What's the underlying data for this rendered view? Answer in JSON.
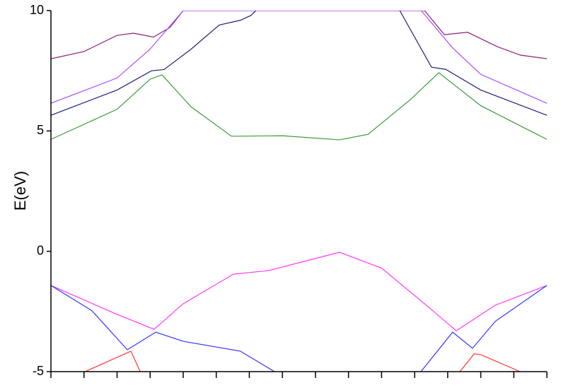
{
  "chart_data": {
    "type": "line",
    "y_label": "E(eV)",
    "xlim": [
      0,
      15
    ],
    "xticks": [
      0,
      1,
      2,
      3,
      4,
      5,
      6,
      7,
      8,
      9,
      10,
      11,
      12,
      13,
      14,
      15
    ],
    "ylim": [
      -5,
      10
    ],
    "yticks": [
      -5,
      0,
      5,
      10
    ],
    "series": [
      {
        "color": "#8b1f7a",
        "x": [
          0,
          1,
          2,
          2.5,
          3.1,
          3.6,
          4,
          11.3,
          11.9,
          12.6,
          13.5,
          14.2,
          15
        ],
        "values": [
          8.0,
          8.3,
          8.97,
          9.06,
          8.9,
          9.3,
          10,
          10,
          9.0,
          9.1,
          8.5,
          8.15,
          8.0
        ]
      },
      {
        "color": "#a64dff",
        "x": [
          0,
          2,
          3,
          4,
          11.2,
          12.15,
          13,
          15
        ],
        "values": [
          6.15,
          7.2,
          8.4,
          10,
          10,
          8.45,
          7.35,
          6.15
        ]
      },
      {
        "color": "#1f1f78",
        "x": [
          0,
          2,
          3.04,
          3.42,
          4.24,
          5.09,
          5.73,
          6.05,
          6.2,
          null,
          10.55,
          11.51,
          11.94,
          13,
          15
        ],
        "values": [
          5.65,
          6.7,
          7.5,
          7.55,
          8.4,
          9.4,
          9.6,
          9.8,
          10,
          null,
          10,
          7.65,
          7.56,
          6.7,
          5.65
        ]
      },
      {
        "color": "#3a9a3a",
        "x": [
          0,
          2,
          3,
          3.36,
          4.24,
          5.46,
          7,
          8.73,
          9.59,
          10.87,
          11.73,
          13,
          15
        ],
        "values": [
          4.65,
          5.9,
          7.15,
          7.33,
          6.0,
          4.78,
          4.8,
          4.63,
          4.86,
          6.3,
          7.42,
          6.05,
          4.65
        ]
      },
      {
        "color": "#ff33ff",
        "x": [
          0,
          2,
          3.12,
          4,
          5.52,
          6.59,
          8.73,
          10,
          11.3,
          12.26,
          13.44,
          15
        ],
        "values": [
          -1.42,
          -2.62,
          -3.24,
          -2.18,
          -0.95,
          -0.8,
          -0.04,
          -0.7,
          -2.18,
          -3.3,
          -2.24,
          -1.42
        ]
      },
      {
        "color": "#3333ff",
        "x": [
          0,
          1.24,
          2.31,
          3.17,
          4,
          5.73,
          6.76,
          null,
          11.19,
          12.15,
          12.75,
          13.44,
          15
        ],
        "values": [
          -1.42,
          -2.47,
          -4.09,
          -3.36,
          -3.74,
          -4.15,
          -5,
          null,
          -5,
          -3.36,
          -4.03,
          -2.91,
          -1.42
        ]
      },
      {
        "color": "#ff3333",
        "x": [
          1.03,
          2.42,
          2.7,
          null,
          12.37,
          12.8,
          13.01,
          14.19
        ],
        "values": [
          -5,
          -4.15,
          -5,
          null,
          -5,
          -4.26,
          -4.3,
          -5
        ]
      }
    ]
  }
}
